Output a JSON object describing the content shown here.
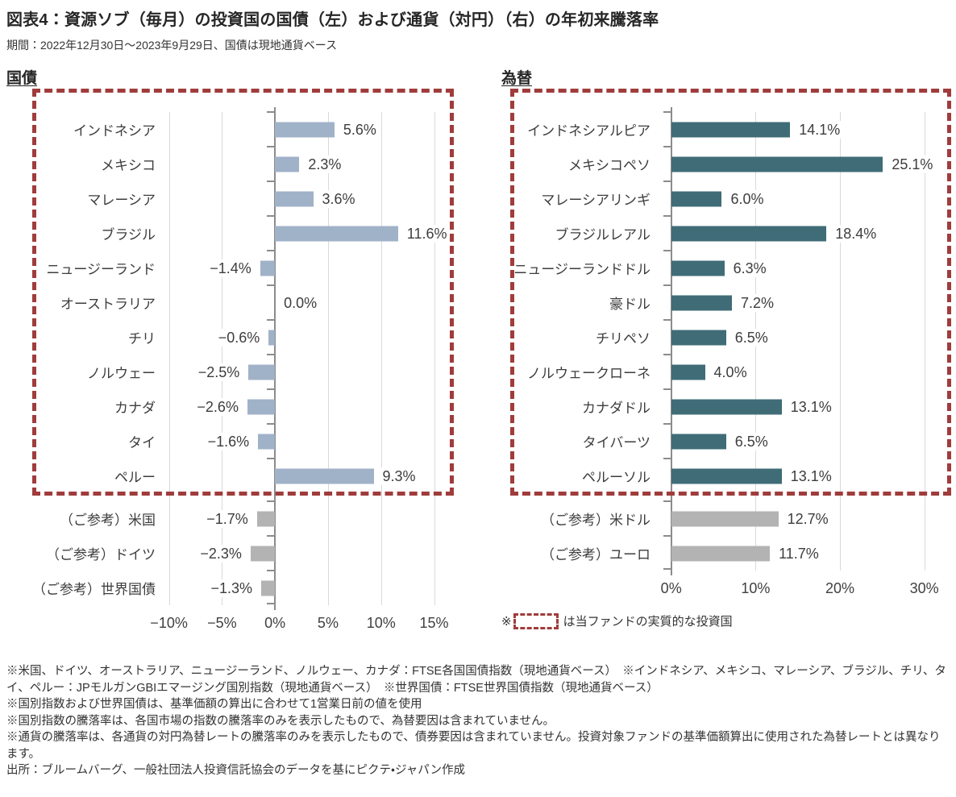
{
  "page": {
    "title": "図表4：資源ソブ（毎月）の投資国の国債（左）および通貨（対円）（右）の年初来騰落率",
    "subtitle": "期間：2022年12月30日～2023年9月29日、国債は現地通貨ベース"
  },
  "colors": {
    "bond_bar": "#a0b2c8",
    "fx_bar": "#3f6c77",
    "reference_bar": "#b3b3b3",
    "highlight_box": "#a03c3c",
    "gridline": "#d9d9d9",
    "axis": "#8c8c8c"
  },
  "fund_note": {
    "prefix": "※",
    "suffix": "は当ファンドの実質的な投資国"
  },
  "chart_data": [
    {
      "type": "bar",
      "orientation": "horizontal",
      "title": "国債",
      "unit": "%",
      "categories": [
        "インドネシア",
        "メキシコ",
        "マレーシア",
        "ブラジル",
        "ニュージーランド",
        "オーストラリア",
        "チリ",
        "ノルウェー",
        "カナダ",
        "タイ",
        "ペルー",
        "（ご参考）米国",
        "（ご参考）ドイツ",
        "（ご参考）世界国債"
      ],
      "values": [
        5.6,
        2.3,
        3.6,
        11.6,
        -1.4,
        0.0,
        -0.6,
        -2.5,
        -2.6,
        -1.6,
        9.3,
        -1.7,
        -2.3,
        -1.3
      ],
      "reference_from_index": 11,
      "highlighted_count": 11,
      "axis": {
        "min": -10.5,
        "max": 18,
        "ticks": [
          -10,
          -5,
          0,
          5,
          10,
          15
        ],
        "grid": true
      },
      "legend": "none"
    },
    {
      "type": "bar",
      "orientation": "horizontal",
      "title": "為替",
      "unit": "%",
      "categories": [
        "インドネシアルピア",
        "メキシコペソ",
        "マレーシアリンギ",
        "ブラジルレアル",
        "ニュージーランドドル",
        "豪ドル",
        "チリペソ",
        "ノルウェークローネ",
        "カナダドル",
        "タイバーツ",
        "ペルーソル",
        "（ご参考）米ドル",
        "（ご参考）ユーロ"
      ],
      "values": [
        14.1,
        25.1,
        6.0,
        18.4,
        6.3,
        7.2,
        6.5,
        4.0,
        13.1,
        6.5,
        13.1,
        12.7,
        11.7
      ],
      "reference_from_index": 11,
      "highlighted_count": 11,
      "axis": {
        "min": -1.5,
        "max": 33,
        "ticks": [
          0,
          10,
          20,
          30
        ],
        "grid": true
      },
      "legend": "none"
    }
  ],
  "footnotes": [
    "※米国、ドイツ、オーストラリア、ニュージーランド、ノルウェー、カナダ：FTSE各国国債指数（現地通貨ベース）　※インドネシア、メキシコ、マレーシア、ブラジル、チリ、タイ、ペルー：JPモルガンGBIエマージング国別指数（現地通貨ベース）　※世界国債：FTSE世界国債指数（現地通貨ベース）",
    "※国別指数および世界国債は、基準価額の算出に合わせて1営業日前の値を使用",
    "※国別指数の騰落率は、各国市場の指数の騰落率のみを表示したもので、為替要因は含まれていません。",
    "※通貨の騰落率は、各通貨の対円為替レートの騰落率のみを表示したもので、債券要因は含まれていません。投資対象ファンドの基準価額算出に使用された為替レートとは異なります。",
    "出所：ブルームバーグ、一般社団法人投資信託協会のデータを基にピクテ・ジャパン作成"
  ]
}
